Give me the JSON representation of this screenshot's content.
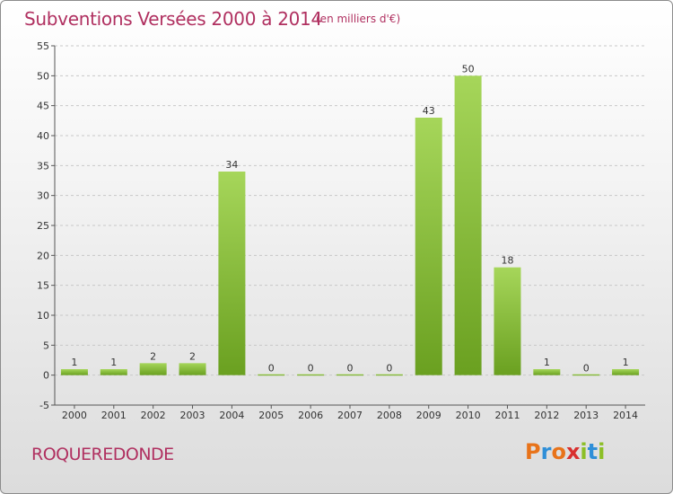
{
  "header": {
    "title": "Subventions Versées 2000 à 2014",
    "unit_note": "(en milliers d'€)"
  },
  "footer": {
    "commune": "ROQUEREDONDE",
    "logo_text": "Proxiti",
    "logo_colors": [
      "#e8731a",
      "#2f8fd8",
      "#e8731a",
      "#d8302f",
      "#8cbf26",
      "#2f8fd8",
      "#8cbf26"
    ]
  },
  "colors": {
    "title": "#b03060",
    "bar_light": "#a6d65a",
    "bar_dark": "#6aa020",
    "grid": "#c8c8c8"
  },
  "chart_data": {
    "type": "bar",
    "title": "Subventions Versées 2000 à 2014",
    "subtitle": "(en milliers d'€)",
    "categories": [
      "2000",
      "2001",
      "2002",
      "2003",
      "2004",
      "2005",
      "2006",
      "2007",
      "2008",
      "2009",
      "2010",
      "2011",
      "2012",
      "2013",
      "2014"
    ],
    "values": [
      1,
      1,
      2,
      2,
      34,
      0,
      0,
      0,
      0,
      43,
      50,
      18,
      1,
      0,
      1
    ],
    "data_labels": [
      "1",
      "1",
      "2",
      "2",
      "34",
      "0",
      "0",
      "0",
      "0",
      "43",
      "50",
      "18",
      "1",
      "0",
      "1"
    ],
    "ylim": [
      -5,
      55
    ],
    "yticks": [
      -5,
      0,
      5,
      10,
      15,
      20,
      25,
      30,
      35,
      40,
      45,
      50,
      55
    ],
    "xlabel": "",
    "ylabel": "",
    "grid": "horizontal-dashed"
  }
}
